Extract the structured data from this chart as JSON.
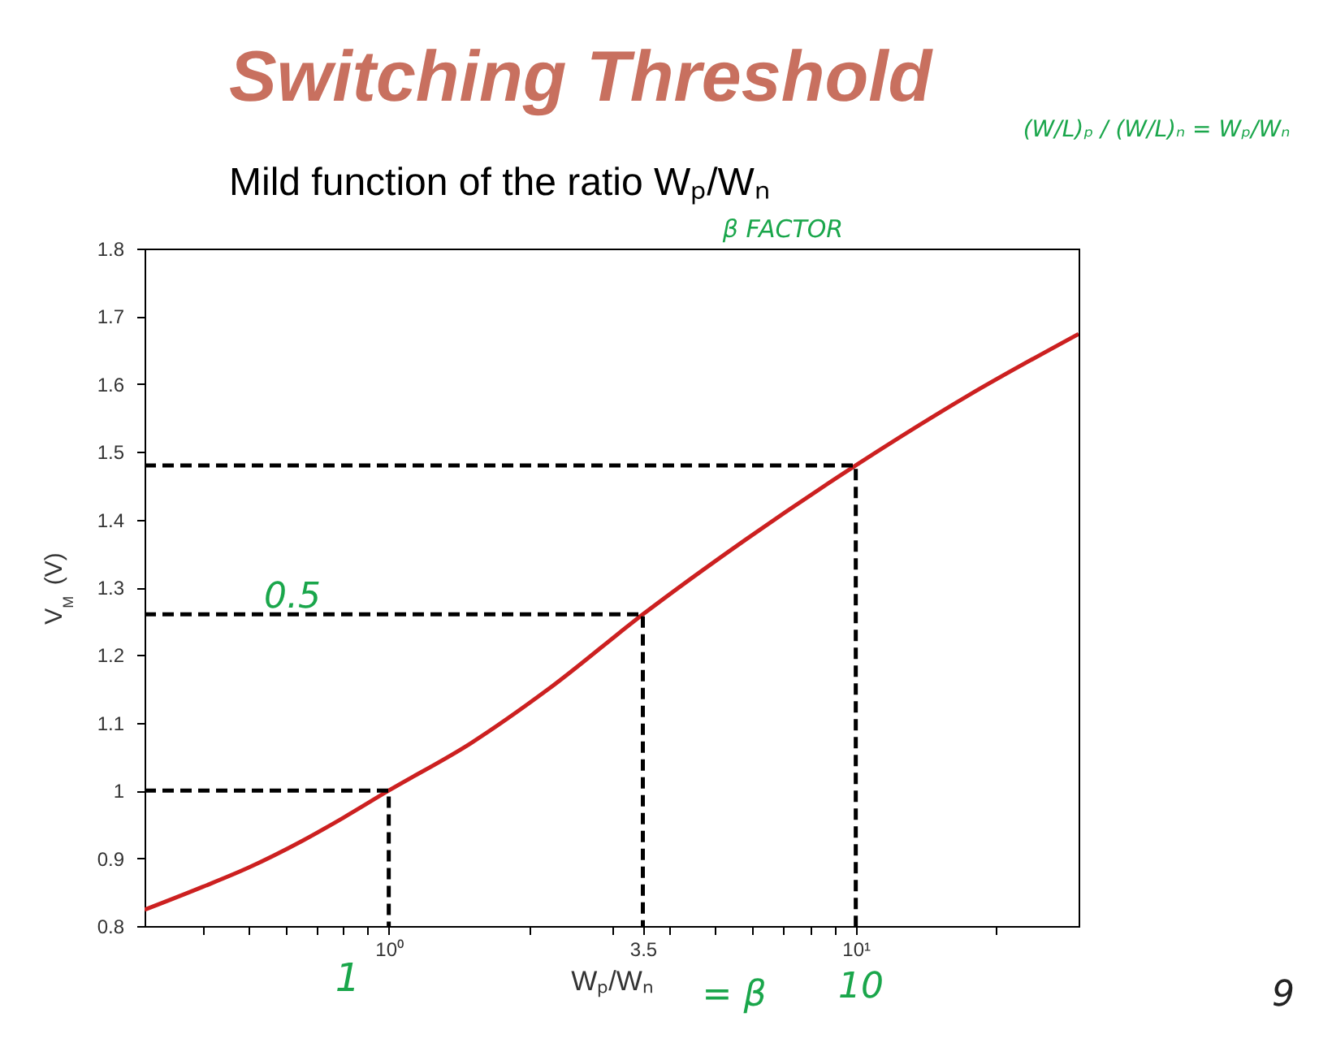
{
  "chart_data": {
    "type": "line",
    "title": "Switching Threshold",
    "subtitle": "Mild function of the ratio Wₚ/Wₙ",
    "xlabel": "Wₚ/Wₙ",
    "ylabel": "V$_{M}$ (V)",
    "log": "x",
    "xlim": [
      0.3,
      30
    ],
    "xticks": [
      {
        "value": 0.4,
        "label": null
      },
      {
        "value": 0.5,
        "label": null
      },
      {
        "value": 0.6,
        "label": null
      },
      {
        "value": 0.7,
        "label": null
      },
      {
        "value": 0.8,
        "label": null
      },
      {
        "value": 0.9,
        "label": null
      },
      {
        "value": 1,
        "label": "10⁰"
      },
      {
        "value": 2,
        "label": null
      },
      {
        "value": 3,
        "label": null
      },
      3.5,
      {
        "value": 4,
        "label": null
      },
      {
        "value": 5,
        "label": null
      },
      {
        "value": 6,
        "label": null
      },
      {
        "value": 7,
        "label": null
      },
      {
        "value": 8,
        "label": null
      },
      {
        "value": 9,
        "label": null
      },
      {
        "value": 10,
        "label": "10¹"
      },
      {
        "value": 20,
        "label": null
      }
    ],
    "ylim": [
      0.8,
      1.8
    ],
    "yticks": [
      0.8,
      0.9,
      1,
      1.1,
      1.2,
      1.3,
      1.4,
      1.5,
      1.6,
      1.7,
      1.8
    ],
    "series": [
      {
        "color": "#cc2020",
        "line_style": "solid",
        "x": [
          0.3,
          0.4,
          0.5,
          0.65,
          0.8,
          1,
          1.5,
          2.2,
          3.5,
          5.8,
          10,
          17.5,
          30
        ],
        "values": [
          0.824,
          0.858,
          0.886,
          0.925,
          0.96,
          1,
          1.07,
          1.15,
          1.26,
          1.37,
          1.48,
          1.584,
          1.674
        ]
      },
      {
        "color": "#000000",
        "line_style": "dashed",
        "x": [
          0.3,
          1,
          1
        ],
        "values": [
          1,
          1,
          0.8
        ]
      },
      {
        "color": "#000000",
        "line_style": "dashed",
        "x": [
          0.3,
          3.5,
          3.5
        ],
        "values": [
          1.26,
          1.26,
          0.8
        ]
      },
      {
        "color": "#000000",
        "line_style": "dashed",
        "x": [
          0.3,
          10,
          10
        ],
        "values": [
          1.48,
          1.48,
          0.8
        ]
      }
    ],
    "annotations": [
      "β FACTOR",
      "(W/L)ₚ / (W/L)ₙ = Wₚ/Wₙ",
      "0.5",
      "1",
      "= β",
      "10",
      "9"
    ]
  }
}
